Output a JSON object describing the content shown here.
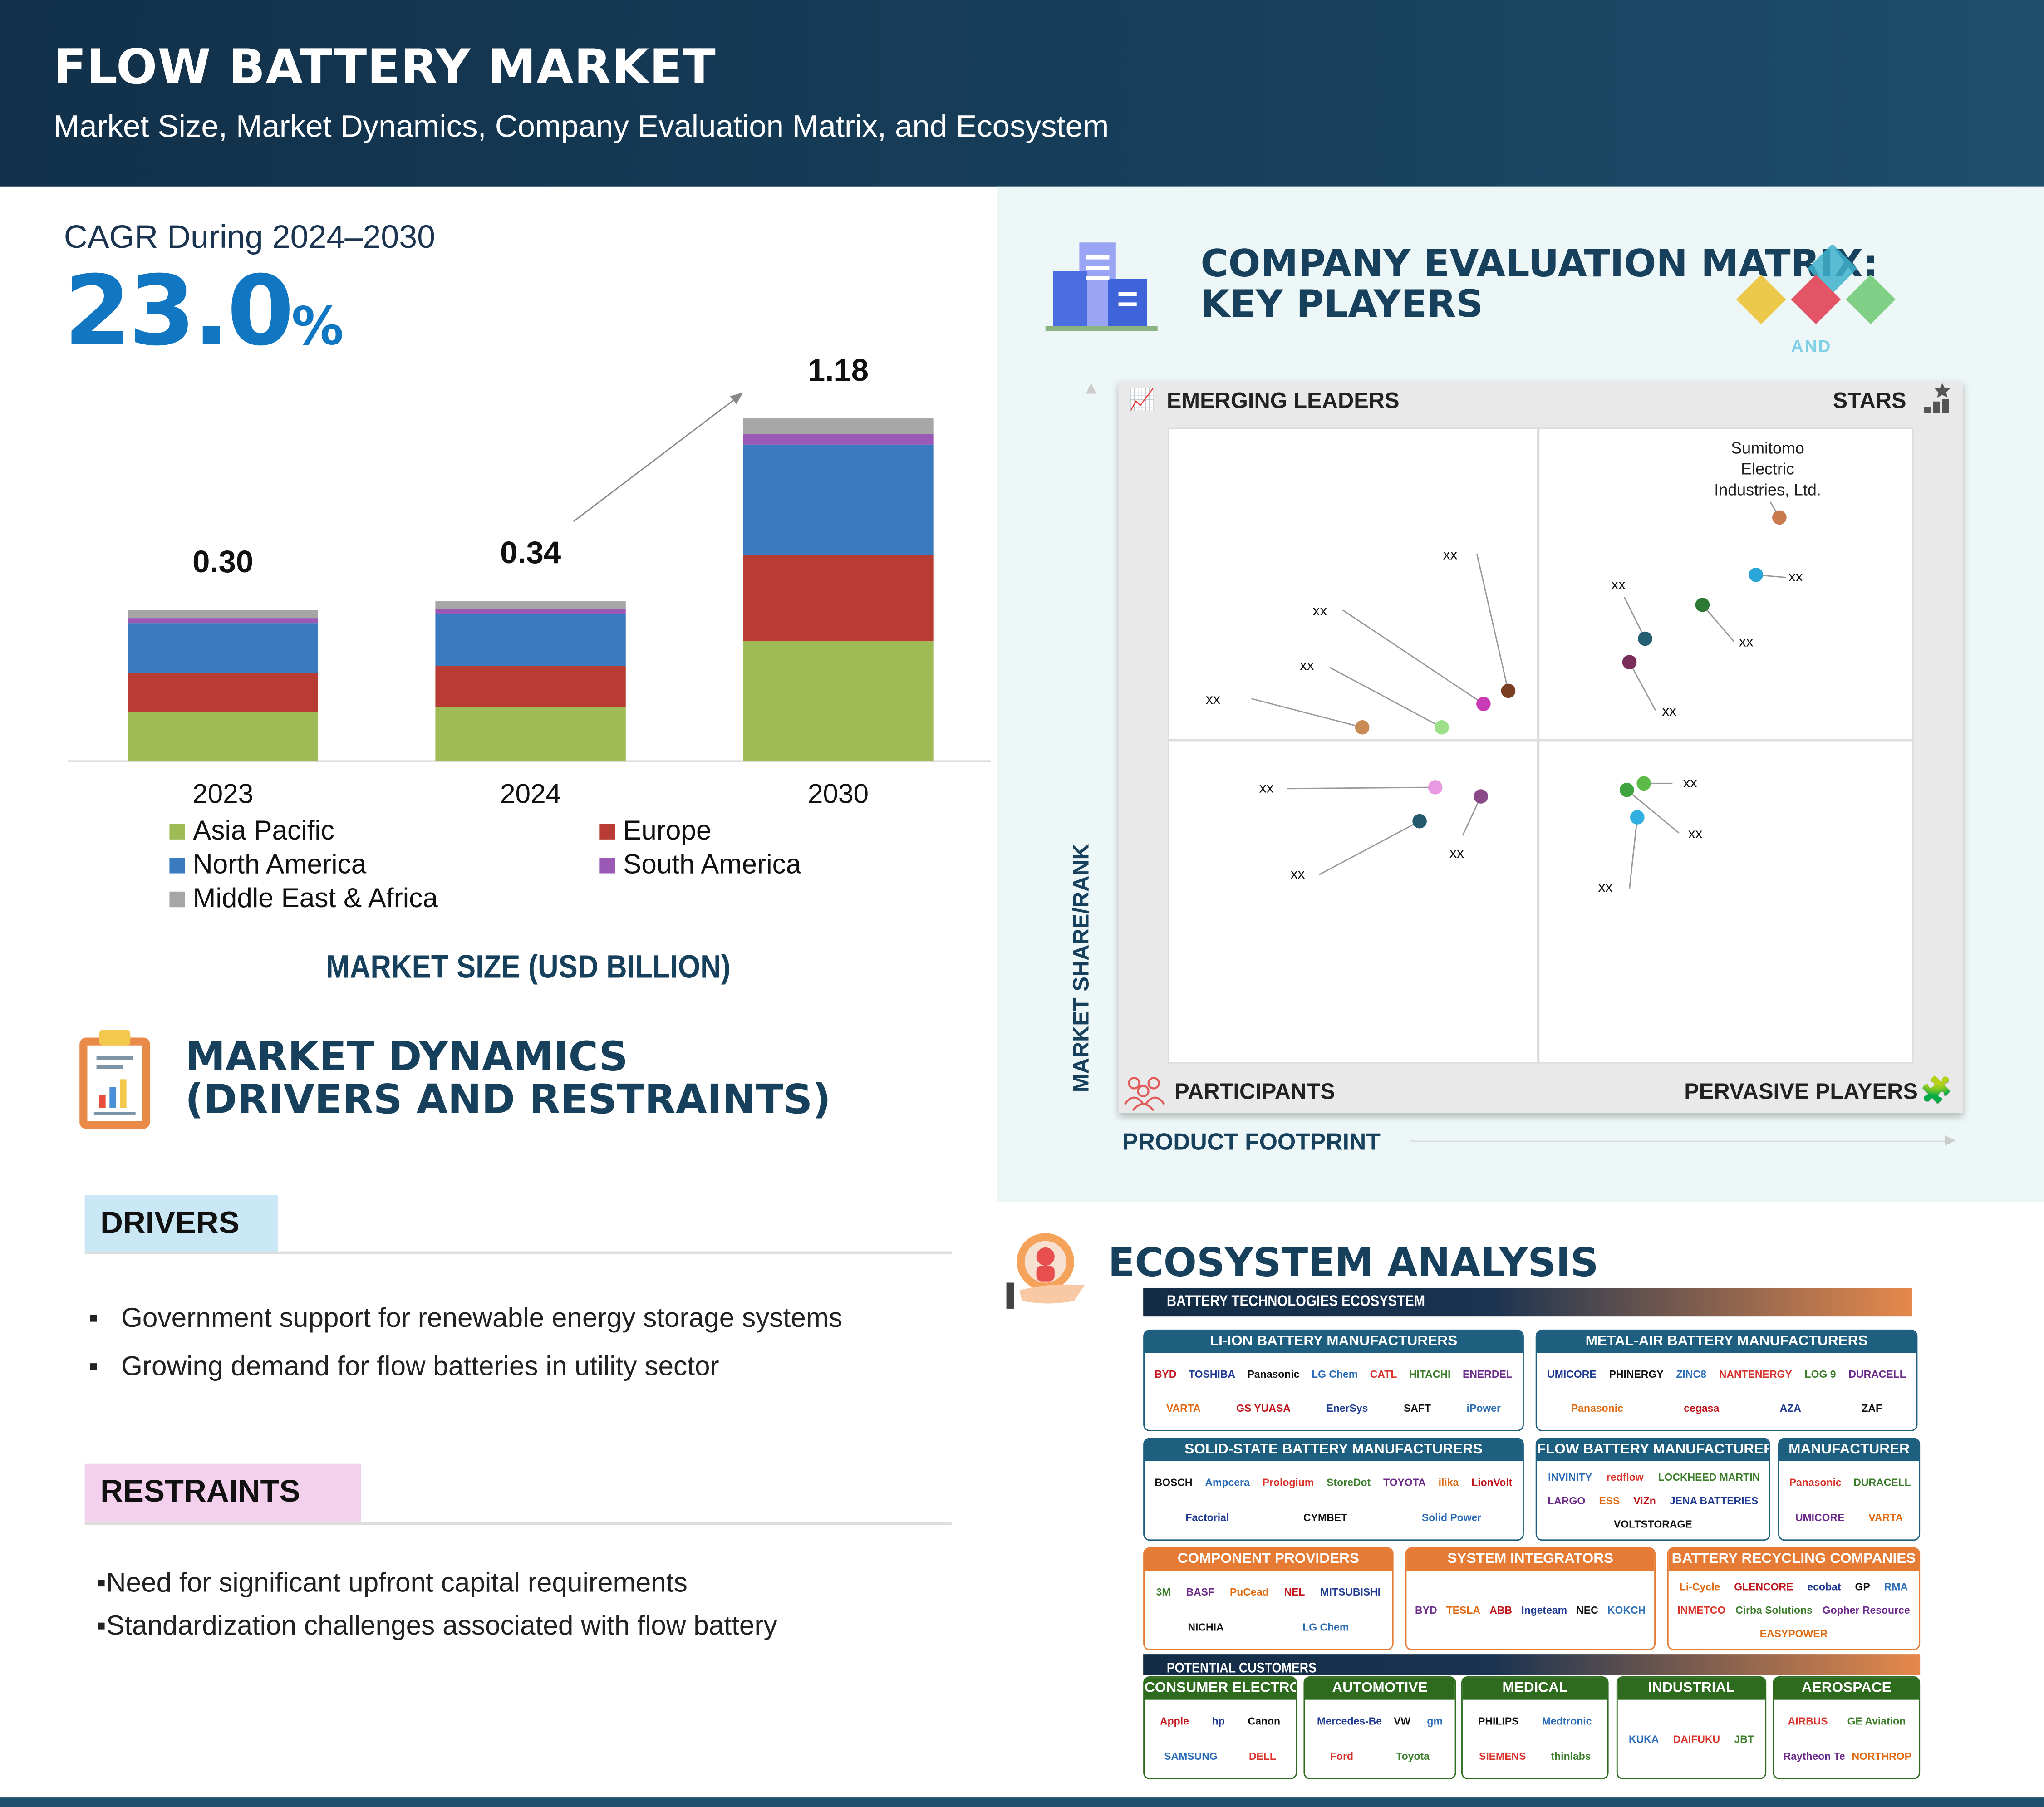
{
  "header": {
    "title": "FLOW BATTERY MARKET",
    "subtitle": "Market Size, Market Dynamics, Company Evaluation Matrix, and Ecosystem"
  },
  "cagr": {
    "label": "CAGR During 2024–2030",
    "value": "23.0",
    "unit": "%"
  },
  "chart_data": {
    "type": "bar",
    "stacked": true,
    "categories": [
      "2023",
      "2024",
      "2030"
    ],
    "totals": [
      0.3,
      0.34,
      1.18
    ],
    "total_labels": [
      "0.30",
      "0.34",
      "1.18"
    ],
    "series": [
      {
        "name": "Asia Pacific",
        "color": "#9fbb55",
        "values": [
          0.098,
          0.115,
          0.413
        ]
      },
      {
        "name": "Europe",
        "color": "#b83c33",
        "values": [
          0.078,
          0.088,
          0.296
        ]
      },
      {
        "name": "North America",
        "color": "#3a7bbf",
        "values": [
          0.098,
          0.11,
          0.381
        ]
      },
      {
        "name": "South America",
        "color": "#9b59b6",
        "values": [
          0.01,
          0.011,
          0.036
        ]
      },
      {
        "name": "Middle East & Africa",
        "color": "#a6a6a6",
        "values": [
          0.016,
          0.016,
          0.054
        ]
      }
    ],
    "xlabel": "MARKET SIZE (USD BILLION)",
    "legend": "bottom"
  },
  "dynamics": {
    "title_line1": "MARKET DYNAMICS",
    "title_line2": "(DRIVERS AND RESTRAINTS)",
    "drivers_label": "DRIVERS",
    "drivers": [
      "Government support for renewable energy storage systems",
      "Growing demand for flow batteries in utility sector"
    ],
    "restraints_label": "RESTRAINTS",
    "restraints": [
      "Need for significant upfront capital requirements",
      "Standardization challenges associated with flow battery"
    ]
  },
  "matrix": {
    "title_line1": "COMPANY EVALUATION MATRIX:",
    "title_line2": "KEY PLAYERS",
    "badge": "AND",
    "q_tl": "EMERGING LEADERS",
    "q_tr": "STARS",
    "q_bl": "PARTICIPANTS",
    "q_br": "PERVASIVE PLAYERS",
    "y_axis": "MARKET SHARE/RANK",
    "x_axis": "PRODUCT FOOTPRINT",
    "highlight": "Sumitomo Electric Industries, Ltd.",
    "placeholder": "xx"
  },
  "ecosystem": {
    "title": "ECOSYSTEM ANALYSIS",
    "bar1": "BATTERY TECHNOLOGIES ECOSYSTEM",
    "bar2": "POTENTIAL CUSTOMERS",
    "groups": [
      {
        "title": "LI-ION BATTERY MANUFACTURERS",
        "logos": [
          "BYD",
          "TOSHIBA",
          "Panasonic",
          "LG Chem",
          "CATL",
          "HITACHI",
          "ENERDEL",
          "VARTA",
          "GS YUASA",
          "EnerSys",
          "SAFT",
          "iPower"
        ]
      },
      {
        "title": "METAL-AIR BATTERY MANUFACTURERS",
        "logos": [
          "UMICORE",
          "PHINERGY",
          "ZINC8",
          "NANTENERGY",
          "LOG 9",
          "DURACELL",
          "Panasonic",
          "cegasa",
          "AZA",
          "ZAF"
        ]
      },
      {
        "title": "SOLID-STATE BATTERY MANUFACTURERS",
        "logos": [
          "BOSCH",
          "Ampcera",
          "Prologium",
          "StoreDot",
          "TOYOTA",
          "ilika",
          "LionVolt",
          "Factorial",
          "CYMBET",
          "Solid Power"
        ]
      },
      {
        "title": "FLOW BATTERY MANUFACTURERS",
        "logos": [
          "INVINITY",
          "redflow",
          "LOCKHEED MARTIN",
          "LARGO",
          "ESS",
          "ViZn",
          "JENA BATTERIES",
          "VOLTSTORAGE"
        ]
      },
      {
        "title": "MANUFACTURER",
        "logos": [
          "Panasonic",
          "DURACELL",
          "UMICORE",
          "VARTA"
        ]
      },
      {
        "title": "COMPONENT PROVIDERS",
        "logos": [
          "3M",
          "BASF",
          "PuCead",
          "NEL",
          "MITSUBISHI",
          "NICHIA",
          "LG Chem"
        ]
      },
      {
        "title": "SYSTEM INTEGRATORS",
        "logos": [
          "BYD",
          "TESLA",
          "ABB",
          "Ingeteam",
          "NEC",
          "KOKCH"
        ]
      },
      {
        "title": "BATTERY RECYCLING COMPANIES",
        "logos": [
          "Li-Cycle",
          "GLENCORE",
          "ecobat",
          "GP",
          "RMA",
          "INMETCO",
          "Cirba Solutions",
          "Gopher Resource",
          "EASYPOWER"
        ]
      },
      {
        "title": "CONSUMER ELECTRONICS",
        "logos": [
          "Apple",
          "hp",
          "Canon",
          "SAMSUNG",
          "DELL"
        ]
      },
      {
        "title": "AUTOMOTIVE",
        "logos": [
          "Mercedes-Benz",
          "VW",
          "gm",
          "Ford",
          "Toyota"
        ]
      },
      {
        "title": "MEDICAL",
        "logos": [
          "PHILIPS",
          "Medtronic",
          "SIEMENS",
          "thinlabs"
        ]
      },
      {
        "title": "INDUSTRIAL",
        "logos": [
          "KUKA",
          "DAIFUKU",
          "JBT"
        ]
      },
      {
        "title": "AEROSPACE",
        "logos": [
          "AIRBUS",
          "GE Aviation",
          "Raytheon Technologies",
          "NORTHROP GRUMMAN"
        ]
      }
    ]
  }
}
